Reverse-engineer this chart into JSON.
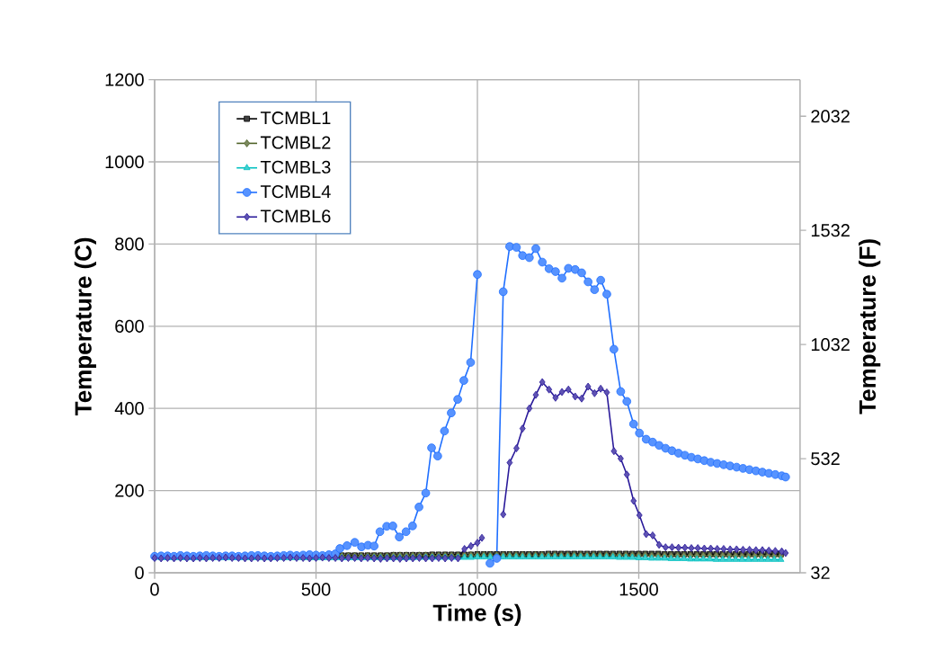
{
  "chart_data": {
    "type": "line",
    "xlabel": "Time (s)",
    "ylabel": "Temperature (C)",
    "y2label": "Temperature (F)",
    "xlim": [
      0,
      2000
    ],
    "xticks": [
      0,
      500,
      1000,
      1500
    ],
    "ylim": [
      0,
      1200
    ],
    "yticks": [
      0,
      200,
      400,
      600,
      800,
      1000,
      1200
    ],
    "y2lim": [
      32,
      2192
    ],
    "y2ticks": [
      32,
      532,
      1032,
      1532,
      2032
    ],
    "grid": true,
    "legend": "top left",
    "series": [
      {
        "name": "TCMBL1",
        "color": "#000000",
        "marker": "square",
        "x": [
          540,
          560,
          580,
          600,
          620,
          640,
          660,
          680,
          700,
          720,
          740,
          760,
          780,
          800,
          820,
          840,
          860,
          880,
          900,
          920,
          940,
          960,
          980,
          1000,
          1020,
          1040,
          1060,
          1080,
          1100,
          1120,
          1140,
          1160,
          1180,
          1200,
          1220,
          1240,
          1260,
          1280,
          1300,
          1320,
          1340,
          1360,
          1380,
          1400,
          1420,
          1440,
          1460,
          1480,
          1500,
          1520,
          1540,
          1560,
          1580,
          1600,
          1620,
          1640,
          1660,
          1680,
          1700,
          1720,
          1740,
          1760,
          1780,
          1800,
          1820,
          1840,
          1860,
          1880,
          1900,
          1920,
          1940
        ],
        "values": [
          43,
          43,
          42,
          42,
          42,
          42,
          42,
          42,
          42,
          42,
          43,
          43,
          43,
          43,
          43,
          43,
          44,
          44,
          44,
          44,
          44,
          44,
          44,
          45,
          45,
          45,
          45,
          45,
          45,
          45,
          45,
          45,
          45,
          45,
          46,
          46,
          46,
          46,
          46,
          46,
          46,
          46,
          46,
          46,
          46,
          46,
          46,
          46,
          46,
          46,
          46,
          46,
          45,
          45,
          45,
          45,
          45,
          45,
          45,
          45,
          45,
          45,
          45,
          45,
          45,
          45,
          45,
          45,
          45,
          45,
          45
        ]
      },
      {
        "name": "TCMBL2",
        "color": "#4f6228",
        "marker": "diamond",
        "x": [
          540,
          560,
          580,
          600,
          620,
          640,
          660,
          680,
          700,
          720,
          740,
          760,
          780,
          800,
          820,
          840,
          860,
          880,
          900,
          920,
          940,
          960,
          980,
          1000,
          1020,
          1040,
          1060,
          1080,
          1100,
          1120,
          1140,
          1160,
          1180,
          1200,
          1220,
          1240,
          1260,
          1280,
          1300,
          1320,
          1340,
          1360,
          1380,
          1400,
          1420,
          1440,
          1460,
          1480,
          1500,
          1520,
          1540,
          1560,
          1580,
          1600,
          1620,
          1640,
          1660,
          1680,
          1700,
          1720,
          1740,
          1760,
          1780,
          1800,
          1820,
          1840,
          1860,
          1880,
          1900,
          1920,
          1940
        ],
        "values": [
          41,
          41,
          41,
          41,
          41,
          41,
          41,
          41,
          41,
          41,
          42,
          42,
          42,
          42,
          42,
          42,
          42,
          42,
          42,
          42,
          42,
          43,
          43,
          43,
          43,
          43,
          43,
          43,
          43,
          43,
          43,
          43,
          43,
          43,
          43,
          43,
          43,
          43,
          43,
          43,
          43,
          43,
          43,
          43,
          43,
          43,
          43,
          43,
          43,
          43,
          42,
          42,
          42,
          42,
          42,
          42,
          42,
          42,
          42,
          42,
          42,
          42,
          42,
          41,
          41,
          41,
          41,
          41,
          41,
          41,
          41
        ]
      },
      {
        "name": "TCMBL3",
        "color": "#00c0c0",
        "marker": "triangle",
        "x": [
          20,
          40,
          60,
          80,
          100,
          120,
          140,
          160,
          180,
          200,
          220,
          240,
          260,
          280,
          300,
          320,
          340,
          360,
          380,
          400,
          420,
          440,
          460,
          480,
          500,
          520,
          540,
          560,
          580,
          600,
          620,
          640,
          660,
          680,
          700,
          720,
          740,
          760,
          780,
          800,
          820,
          840,
          860,
          880,
          900,
          920,
          940,
          960,
          980,
          1000,
          1020,
          1040,
          1060,
          1080,
          1100,
          1120,
          1140,
          1160,
          1180,
          1200,
          1220,
          1240,
          1260,
          1280,
          1300,
          1320,
          1340,
          1360,
          1380,
          1400,
          1420,
          1440,
          1460,
          1480,
          1500,
          1520,
          1540,
          1560,
          1580,
          1600,
          1620,
          1640,
          1660,
          1680,
          1700,
          1720,
          1740,
          1760,
          1780,
          1800,
          1820,
          1840,
          1860,
          1880,
          1900,
          1920,
          1940
        ],
        "values": [
          36,
          36,
          36,
          36,
          36,
          36,
          36,
          36,
          36,
          36,
          36,
          36,
          36,
          36,
          36,
          36,
          36,
          36,
          36,
          36,
          36,
          36,
          36,
          36,
          36,
          36,
          36,
          36,
          36,
          36,
          36,
          36,
          36,
          36,
          36,
          36,
          36,
          36,
          36,
          36,
          37,
          37,
          37,
          37,
          37,
          37,
          37,
          37,
          37,
          38,
          38,
          38,
          38,
          38,
          38,
          38,
          38,
          38,
          38,
          38,
          38,
          38,
          38,
          38,
          38,
          38,
          38,
          38,
          38,
          38,
          38,
          37,
          37,
          37,
          36,
          36,
          35,
          35,
          35,
          34,
          34,
          34,
          33,
          33,
          33,
          33,
          32,
          32,
          32,
          32,
          32,
          32,
          32,
          32,
          32,
          32,
          32
        ]
      },
      {
        "name": "TCMBL4",
        "color": "#1f6fff",
        "marker": "circle",
        "x": [
          0,
          20,
          40,
          60,
          80,
          100,
          120,
          140,
          160,
          180,
          200,
          220,
          240,
          260,
          280,
          300,
          320,
          340,
          360,
          380,
          400,
          420,
          440,
          460,
          480,
          500,
          520,
          540,
          560,
          574,
          596,
          620,
          641,
          661,
          680,
          698,
          719,
          738,
          758,
          779,
          799,
          819,
          840,
          858,
          877,
          898,
          919,
          939,
          958,
          979,
          1000,
          1010,
          1039,
          1060,
          1080,
          1100,
          1121,
          1140,
          1161,
          1181,
          1201,
          1222,
          1242,
          1262,
          1282,
          1303,
          1323,
          1343,
          1363,
          1382,
          1401,
          1423,
          1444,
          1463,
          1484,
          1502,
          1523,
          1543,
          1563,
          1583,
          1603,
          1623,
          1643,
          1663,
          1683,
          1703,
          1723,
          1743,
          1763,
          1783,
          1803,
          1823,
          1843,
          1863,
          1883,
          1903,
          1923,
          1943,
          1955
        ],
        "values": [
          40,
          41,
          41,
          40,
          42,
          41,
          40,
          41,
          42,
          41,
          40,
          41,
          41,
          40,
          41,
          42,
          42,
          41,
          40,
          41,
          42,
          43,
          42,
          43,
          44,
          43,
          42,
          44,
          46,
          59,
          66,
          74,
          63,
          67,
          65,
          100,
          113,
          114,
          87,
          100,
          114,
          160,
          194,
          304,
          284,
          345,
          389,
          422,
          468,
          512,
          726,
          null,
          23,
          35,
          684,
          794,
          792,
          772,
          767,
          789,
          756,
          740,
          733,
          717,
          741,
          738,
          730,
          708,
          689,
          712,
          678,
          544,
          441,
          417,
          362,
          340,
          325,
          318,
          310,
          303,
          297,
          291,
          286,
          281,
          277,
          273,
          269,
          266,
          263,
          260,
          257,
          254,
          251,
          248,
          245,
          242,
          239,
          236,
          233
        ]
      },
      {
        "name": "TCMBL6",
        "color": "#2a1a9a",
        "marker": "diamond",
        "x": [
          0,
          20,
          40,
          60,
          80,
          100,
          120,
          140,
          160,
          180,
          200,
          220,
          240,
          260,
          280,
          300,
          320,
          340,
          360,
          380,
          400,
          420,
          440,
          460,
          480,
          500,
          520,
          540,
          560,
          580,
          600,
          620,
          640,
          660,
          680,
          700,
          720,
          740,
          760,
          780,
          800,
          820,
          840,
          860,
          880,
          900,
          920,
          940,
          960,
          980,
          1000,
          1014,
          1030,
          1080,
          1100,
          1121,
          1140,
          1161,
          1181,
          1201,
          1222,
          1242,
          1262,
          1282,
          1303,
          1323,
          1343,
          1363,
          1382,
          1401,
          1423,
          1444,
          1463,
          1484,
          1502,
          1523,
          1543,
          1563,
          1583,
          1603,
          1623,
          1643,
          1663,
          1683,
          1703,
          1723,
          1743,
          1763,
          1783,
          1803,
          1823,
          1843,
          1863,
          1883,
          1903,
          1923,
          1943,
          1955
        ],
        "values": [
          36,
          35,
          36,
          35,
          36,
          35,
          35,
          36,
          35,
          36,
          36,
          37,
          36,
          36,
          35,
          35,
          36,
          35,
          35,
          36,
          36,
          37,
          36,
          36,
          35,
          36,
          37,
          36,
          36,
          35,
          36,
          36,
          35,
          36,
          35,
          34,
          35,
          35,
          34,
          35,
          35,
          36,
          35,
          35,
          36,
          35,
          36,
          35,
          58,
          65,
          73,
          85,
          null,
          142,
          268,
          303,
          351,
          400,
          433,
          464,
          446,
          426,
          440,
          446,
          429,
          424,
          453,
          437,
          448,
          439,
          296,
          278,
          239,
          175,
          140,
          94,
          91,
          68,
          62,
          62,
          61,
          61,
          60,
          60,
          59,
          59,
          58,
          58,
          57,
          57,
          56,
          56,
          55,
          55,
          54,
          53,
          52,
          48
        ]
      }
    ]
  }
}
